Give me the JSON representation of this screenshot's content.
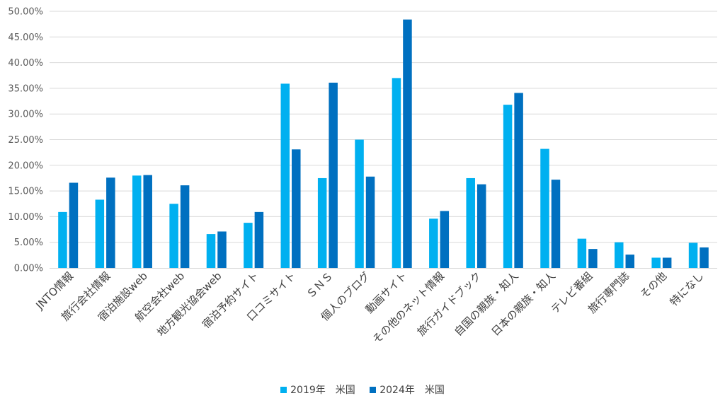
{
  "chart_data": {
    "type": "bar",
    "categories": [
      "JNTO情報",
      "旅行会社情報",
      "宿泊施設web",
      "航空会社web",
      "地方観光協会web",
      "宿泊予約サイト",
      "口コミサイト",
      "ＳＮＳ",
      "個人のブログ",
      "動画サイト",
      "その他のネット情報",
      "旅行ガイドブック",
      "自国の親族・知人",
      "日本の親族・知人",
      "テレビ番組",
      "旅行専門誌",
      "その他",
      "特になし"
    ],
    "series": [
      {
        "name": "2019年　米国",
        "color": "#00B0F0",
        "values": [
          10.9,
          13.3,
          18.0,
          12.5,
          6.6,
          8.8,
          35.9,
          17.5,
          25.0,
          37.0,
          9.6,
          17.5,
          31.8,
          23.2,
          5.7,
          5.0,
          2.0,
          4.9
        ]
      },
      {
        "name": "2024年　米国",
        "color": "#0070C0",
        "values": [
          16.6,
          17.6,
          18.1,
          16.1,
          7.1,
          10.9,
          23.1,
          36.1,
          17.8,
          48.4,
          11.1,
          16.3,
          34.1,
          17.2,
          3.7,
          2.6,
          2.0,
          4.0
        ]
      }
    ],
    "ylim": [
      0,
      50
    ],
    "yticks": [
      "0.00%",
      "5.00%",
      "10.00%",
      "15.00%",
      "20.00%",
      "25.00%",
      "30.00%",
      "35.00%",
      "40.00%",
      "45.00%",
      "50.00%"
    ],
    "grid": true,
    "legend_position": "bottom"
  }
}
